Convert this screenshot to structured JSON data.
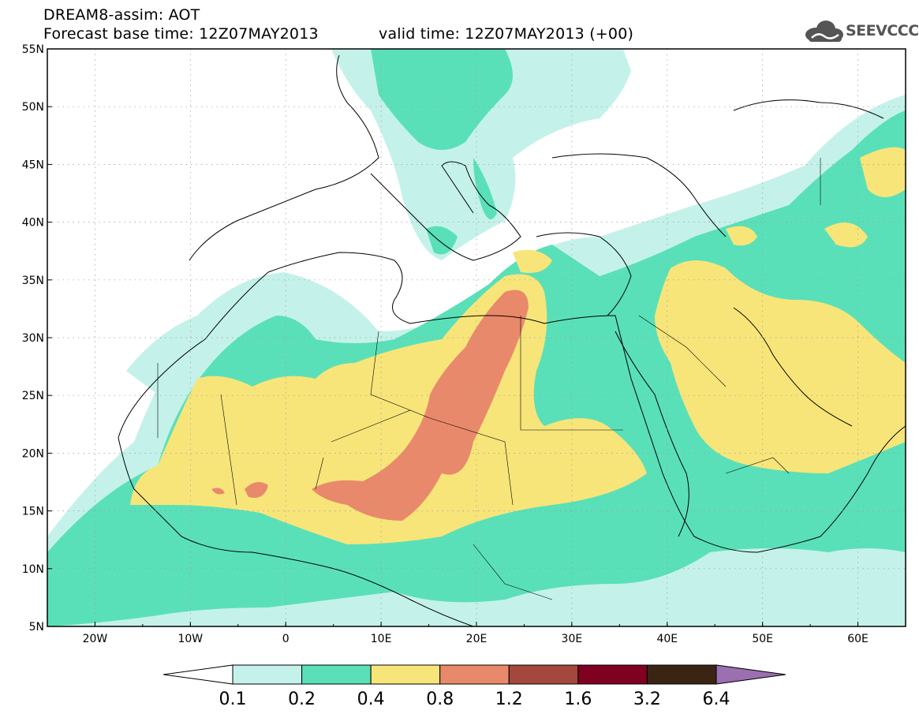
{
  "header": {
    "title_line1": "DREAM8-assim: AOT",
    "title_line2": "Forecast base time: 12Z07MAY2013",
    "valid_time": "valid time: 12Z07MAY2013 (+00)",
    "logo_text": "SEEVCCC"
  },
  "axes": {
    "lon_labels": [
      "20W",
      "10W",
      "0",
      "10E",
      "20E",
      "30E",
      "40E",
      "50E",
      "60E"
    ],
    "lat_labels": [
      "55N",
      "50N",
      "45N",
      "40N",
      "35N",
      "30N",
      "25N",
      "20N",
      "15N",
      "10N",
      "5N"
    ],
    "lon_range": [
      -25,
      65
    ],
    "lat_range": [
      5,
      55
    ]
  },
  "colorbar": {
    "levels": [
      "0.1",
      "0.2",
      "0.4",
      "0.8",
      "1.2",
      "1.6",
      "3.2",
      "6.4"
    ],
    "colors": [
      "#ffffff",
      "#c4f2ea",
      "#5ae0b8",
      "#f7e57a",
      "#e9896b",
      "#a4473d",
      "#800022",
      "#3a2515",
      "#9b6fb2"
    ]
  },
  "palette": {
    "level_0_1": "#c4f2ea",
    "level_0_2": "#5ae0b8",
    "level_0_4": "#f7e57a",
    "level_0_8": "#e9896b",
    "land_border": "#000000"
  }
}
